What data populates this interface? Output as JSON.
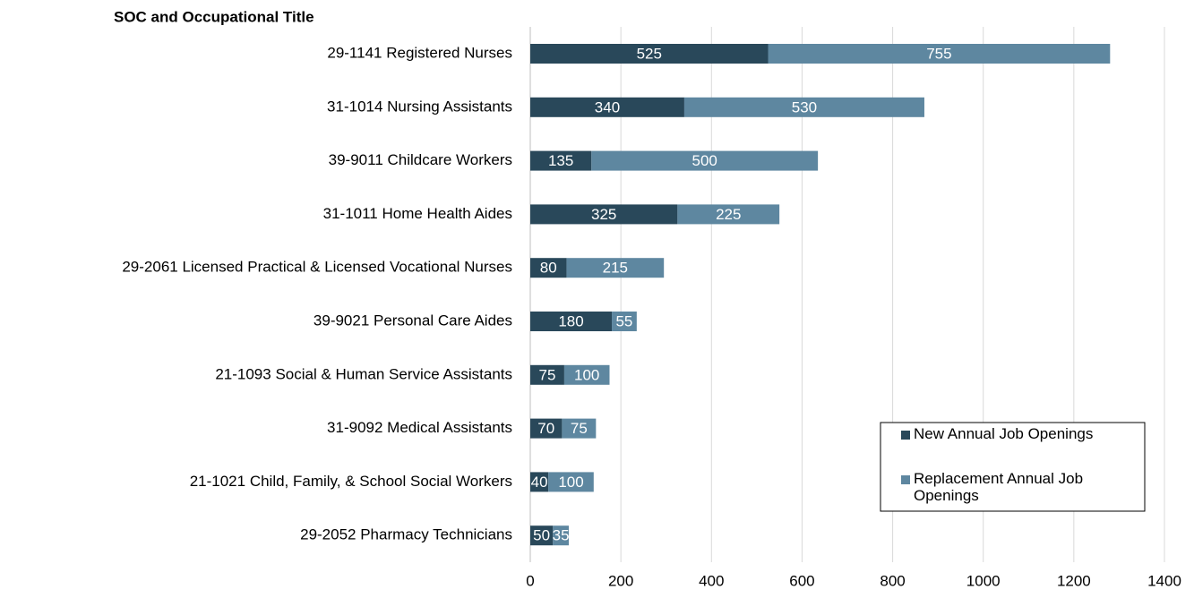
{
  "chart_data": {
    "type": "stacked-bar-horizontal",
    "y_axis_title": "SOC and Occupational Title",
    "categories": [
      "29-1141 Registered Nurses",
      "31-1014 Nursing Assistants",
      "39-9011 Childcare Workers",
      "31-1011 Home Health Aides",
      "29-2061 Licensed Practical & Licensed Vocational Nurses",
      "39-9021 Personal Care Aides",
      "21-1093 Social & Human Service Assistants",
      "31-9092 Medical Assistants",
      "21-1021 Child, Family, & School Social Workers",
      "29-2052 Pharmacy Technicians"
    ],
    "series": [
      {
        "name": "New Annual Job Openings",
        "color": "#29485a",
        "values": [
          525,
          340,
          135,
          325,
          80,
          180,
          75,
          70,
          40,
          50
        ]
      },
      {
        "name": "Replacement Annual Job Openings",
        "color": "#5e87a0",
        "values": [
          755,
          530,
          500,
          225,
          215,
          55,
          100,
          75,
          100,
          35
        ]
      }
    ],
    "xlim": [
      0,
      1400
    ],
    "xticks": [
      0,
      200,
      400,
      600,
      800,
      1000,
      1200,
      1400
    ],
    "grid": true,
    "legend": "lower right"
  }
}
